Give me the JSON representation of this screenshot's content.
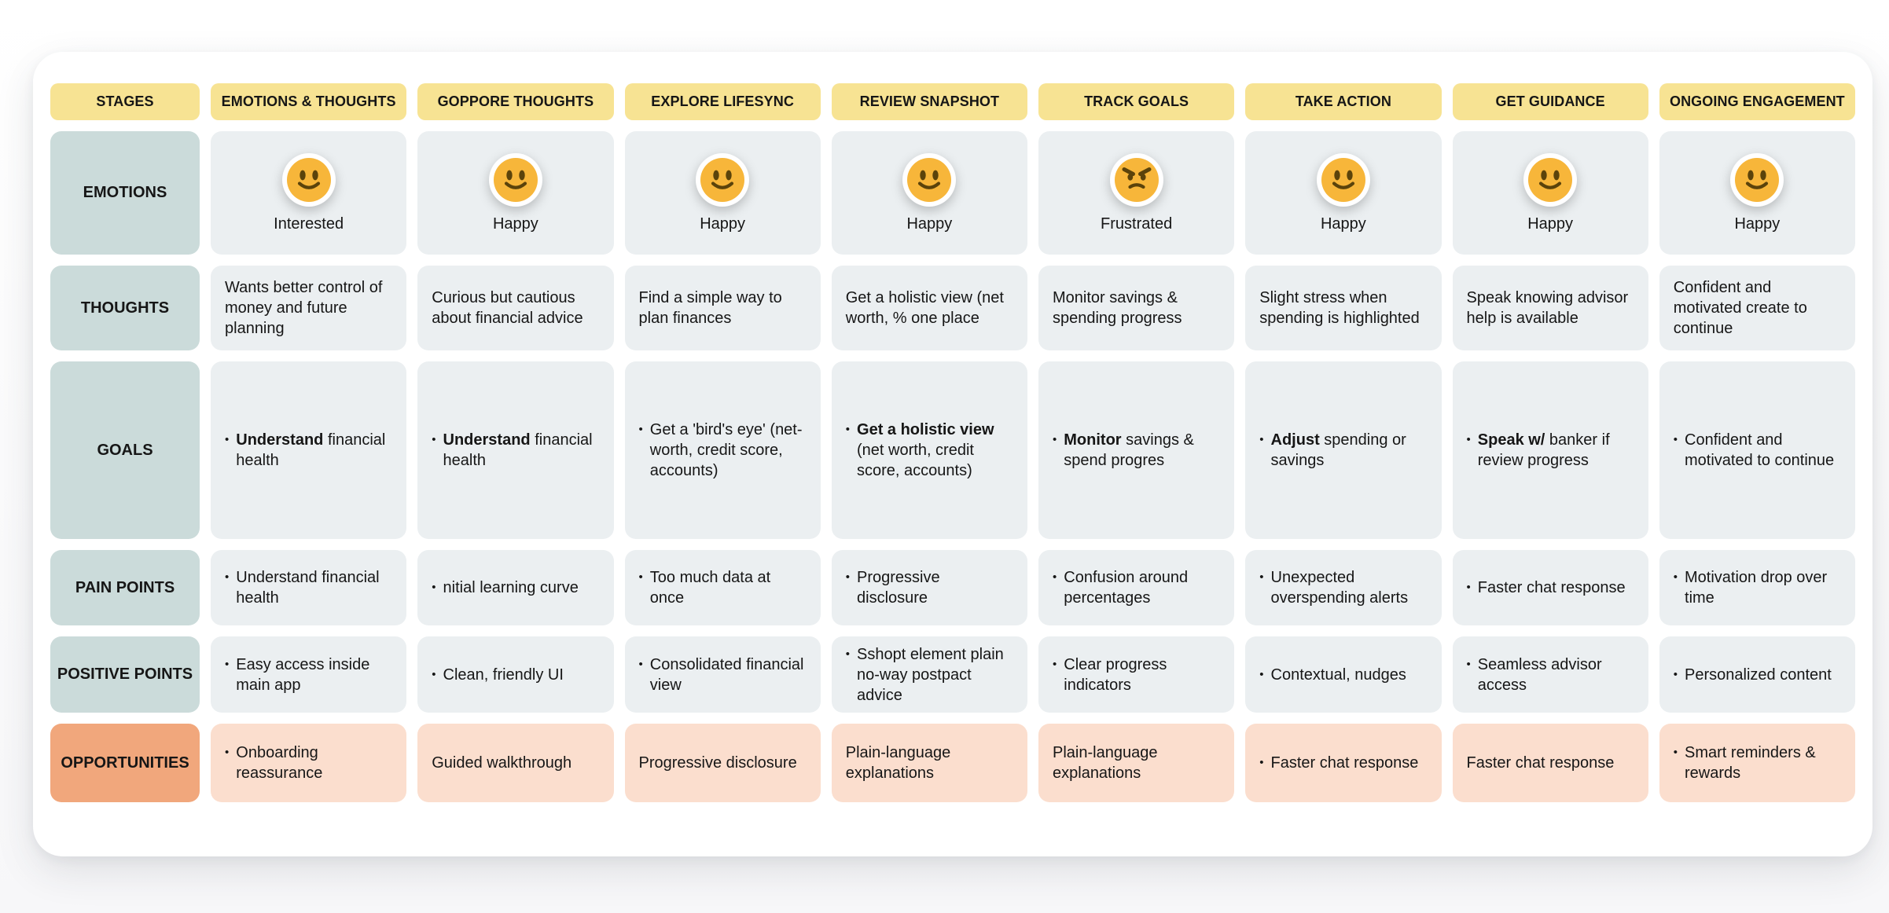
{
  "header": {
    "stages_label": "STAGES",
    "columns": [
      "EMOTIONS & THOUGHTS",
      "GOPPORE THOUGHTS",
      "EXPLORE LIFESYNC",
      "REVIEW SNAPSHOT",
      "TRACK GOALS",
      "TAKE ACTION",
      "GET GUIDANCE",
      "ONGOING ENGAGEMENT"
    ]
  },
  "rows": {
    "emotions": {
      "label": "EMOTIONS",
      "cells": [
        {
          "emoji": "happy",
          "label": "Interested"
        },
        {
          "emoji": "happy",
          "label": "Happy"
        },
        {
          "emoji": "happy",
          "label": "Happy"
        },
        {
          "emoji": "happy",
          "label": "Happy"
        },
        {
          "emoji": "frustrated",
          "label": "Frustrated"
        },
        {
          "emoji": "happy",
          "label": "Happy"
        },
        {
          "emoji": "happy",
          "label": "Happy"
        },
        {
          "emoji": "happy",
          "label": "Happy"
        }
      ]
    },
    "thoughts": {
      "label": "THOUGHTS",
      "cells": [
        "Wants better control of money and future planning",
        "Curious but cautious about financial advice",
        "Find a simple way to plan finances",
        "Get a holistic view (net worth, % one place",
        "Monitor savings & spending progress",
        "Slight stress when spending is highlighted",
        "Speak knowing advisor help is available",
        "Confident and motivated create to continue"
      ]
    },
    "goals": {
      "label": "GOALS",
      "cells": [
        {
          "bullet": true,
          "bold": "Understand",
          "text": " financial health"
        },
        {
          "bullet": true,
          "bold": "Understand",
          "text": " financial health"
        },
        {
          "bullet": true,
          "bold": "",
          "text": "Get a 'bird's eye' (net-worth, credit score, accounts)"
        },
        {
          "bullet": true,
          "bold": "Get a holistic view",
          "text": " (net worth, credit score, accounts)"
        },
        {
          "bullet": true,
          "bold": "Monitor",
          "text": " savings & spend progres"
        },
        {
          "bullet": true,
          "bold": "Adjust",
          "text": " spending or savings"
        },
        {
          "bullet": true,
          "bold": "Speak w/",
          "text": " banker if review progress"
        },
        {
          "bullet": true,
          "bold": "",
          "text": "Confident and motivated to continue"
        }
      ]
    },
    "pain_points": {
      "label": "PAIN POINTS",
      "cells": [
        {
          "bullet": true,
          "bold": "",
          "text": "Understand financial health"
        },
        {
          "bullet": true,
          "bold": "",
          "text": "nitial learning curve"
        },
        {
          "bullet": true,
          "bold": "",
          "text": "Too much data at once"
        },
        {
          "bullet": true,
          "bold": "",
          "text": "Progressive disclosure"
        },
        {
          "bullet": true,
          "bold": "",
          "text": "Confusion around percentages"
        },
        {
          "bullet": true,
          "bold": "",
          "text": "Unexpected overspending alerts"
        },
        {
          "bullet": true,
          "bold": "",
          "text": "Faster chat response"
        },
        {
          "bullet": true,
          "bold": "",
          "text": "Motivation drop over time"
        }
      ]
    },
    "positive_points": {
      "label": "POSITIVE POINTS",
      "cells": [
        {
          "bullet": true,
          "bold": "",
          "text": "Easy access inside main app"
        },
        {
          "bullet": true,
          "bold": "",
          "text": "Clean, friendly UI"
        },
        {
          "bullet": true,
          "bold": "",
          "text": "Consolidated financial view"
        },
        {
          "bullet": true,
          "bold": "",
          "text": "Sshopt element plain no-way postpact advice"
        },
        {
          "bullet": true,
          "bold": "",
          "text": "Clear progress indicators"
        },
        {
          "bullet": true,
          "bold": "",
          "text": "Contextual, nudges"
        },
        {
          "bullet": true,
          "bold": "",
          "text": "Seamless advisor access"
        },
        {
          "bullet": true,
          "bold": "",
          "text": "Personalized content"
        }
      ]
    },
    "opportunities": {
      "label": "OPPORTUNITIES",
      "cells": [
        {
          "bullet": true,
          "bold": "",
          "text": "Onboarding reassurance"
        },
        {
          "bullet": false,
          "bold": "",
          "text": "Guided walkthrough"
        },
        {
          "bullet": false,
          "bold": "",
          "text": "Progressive disclosure"
        },
        {
          "bullet": false,
          "bold": "",
          "text": "Plain-language explanations"
        },
        {
          "bullet": false,
          "bold": "",
          "text": "Plain-language explanations"
        },
        {
          "bullet": true,
          "bold": "",
          "text": "Faster chat response"
        },
        {
          "bullet": false,
          "bold": "",
          "text": "Faster chat response"
        },
        {
          "bullet": true,
          "bold": "",
          "text": "Smart reminders & rewards"
        }
      ]
    }
  },
  "icons": {
    "happy": "emoji-happy-icon",
    "frustrated": "emoji-frustrated-icon"
  },
  "colors": {
    "yellow": "#F7E393",
    "rowhead": "#CBDBDA",
    "cell": "#EBEFF1",
    "opphead": "#F1A77C",
    "oppcell": "#FBDECE",
    "emoji": "#F7B63A",
    "emoji_features": "#5B430B"
  }
}
